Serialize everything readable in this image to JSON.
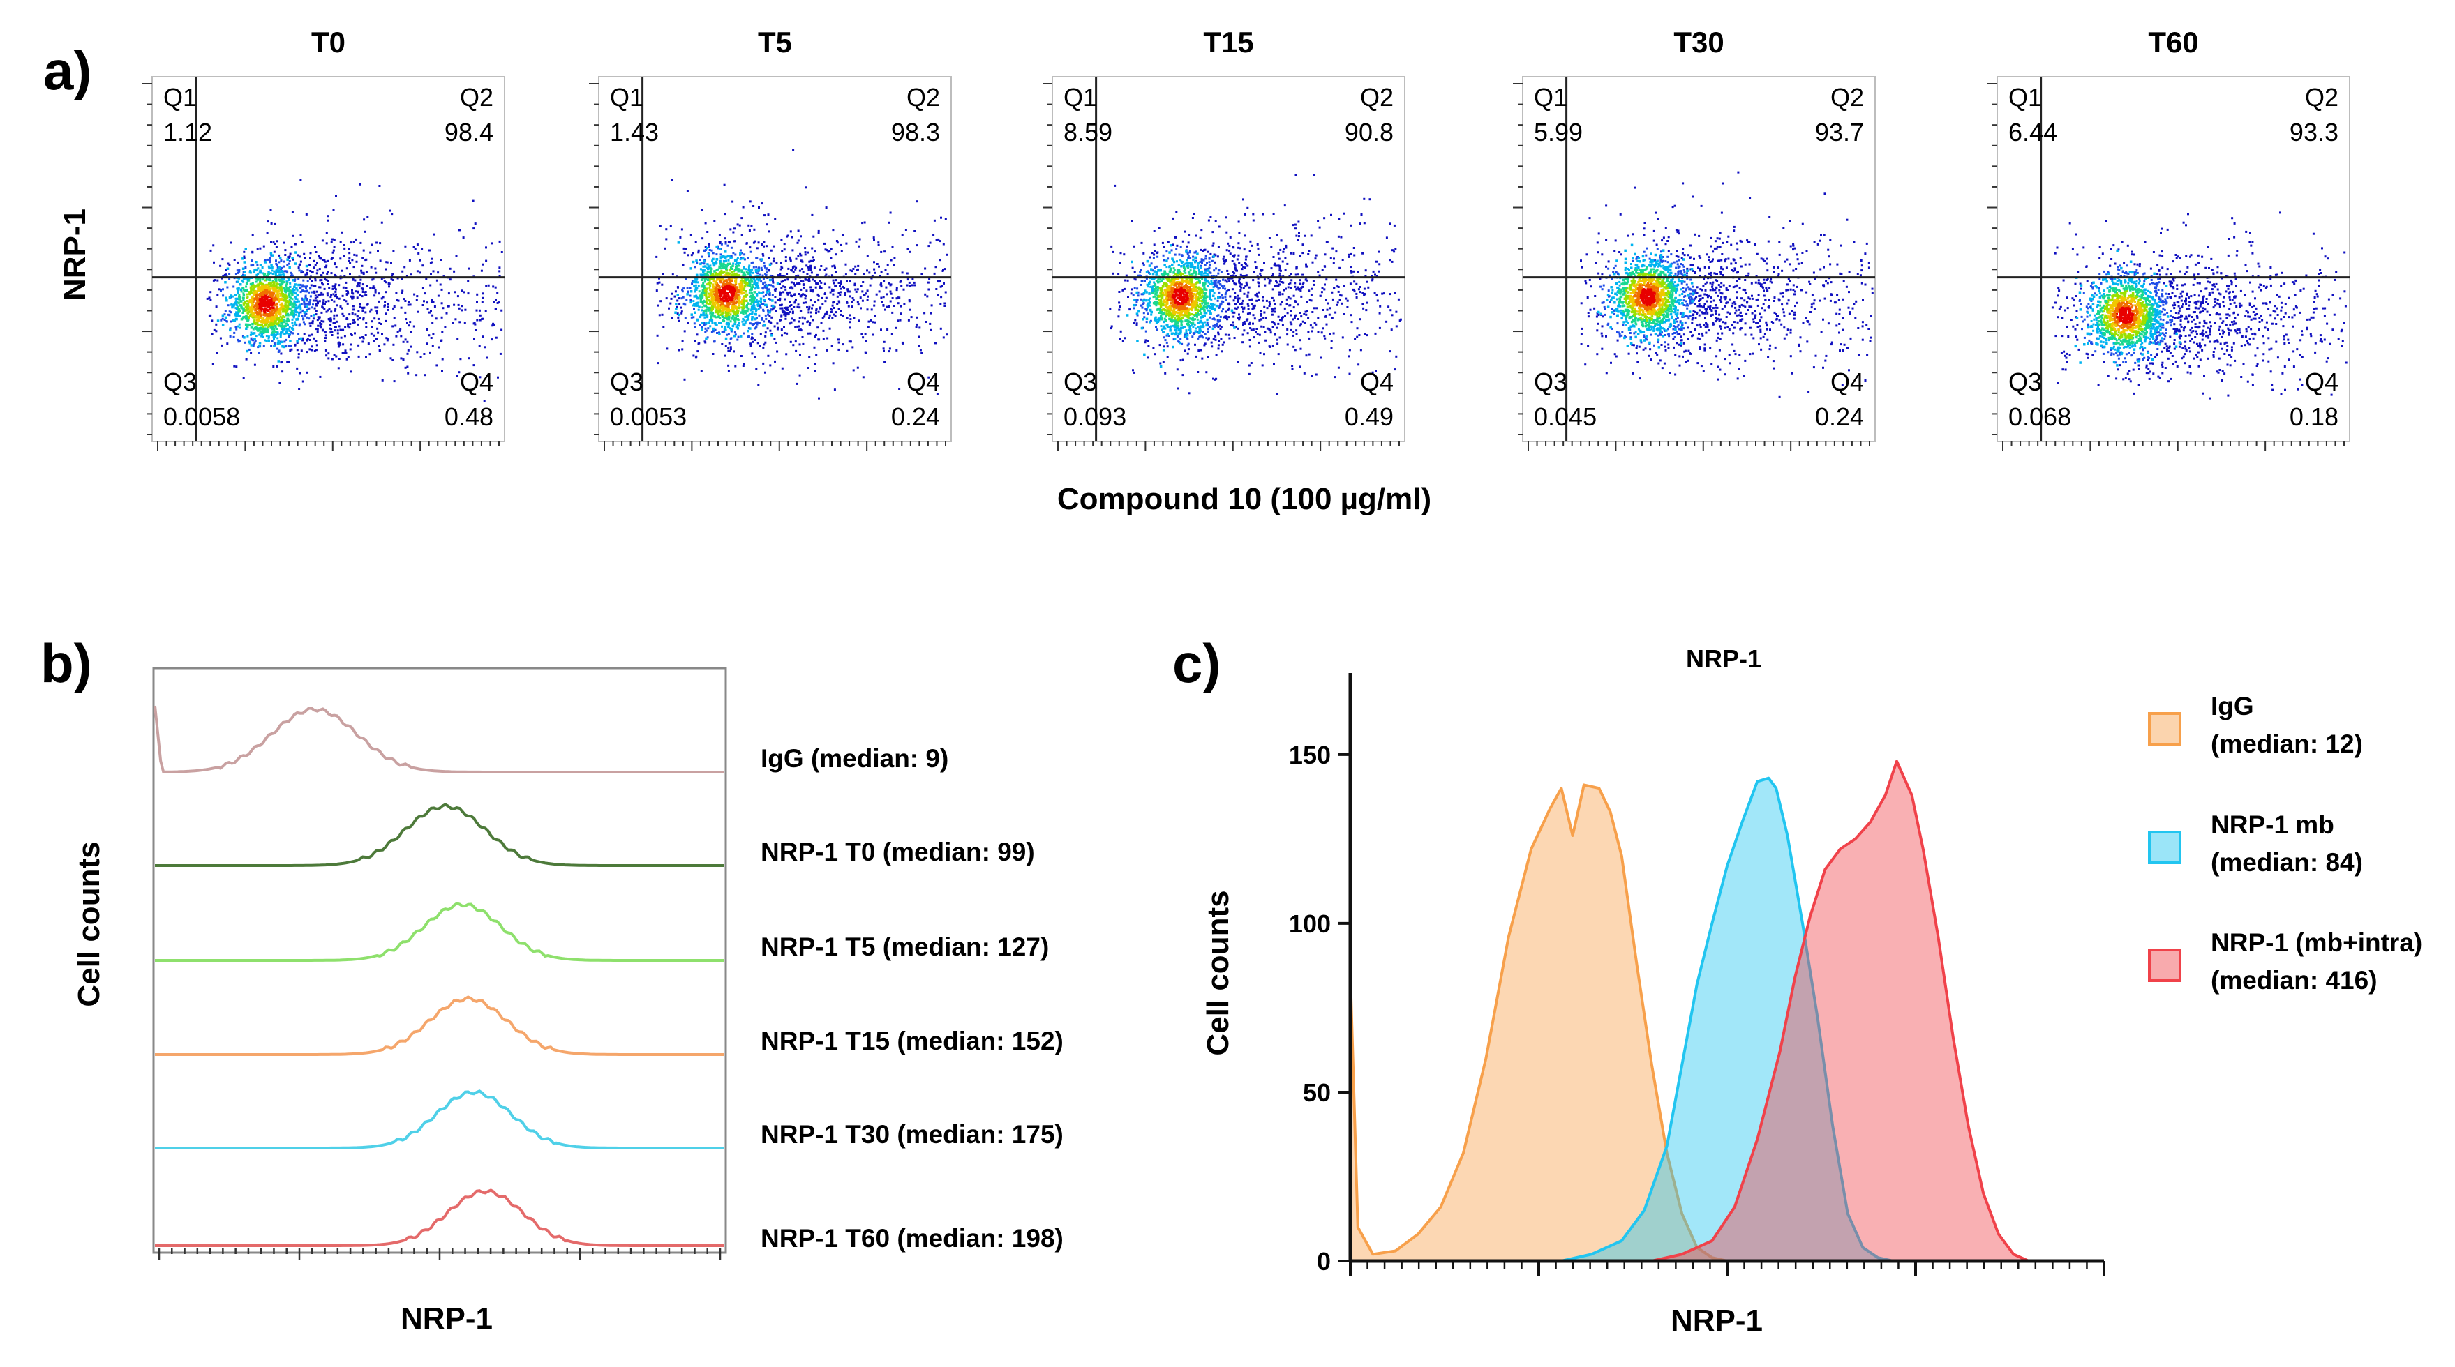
{
  "panel_a": {
    "label": "a)",
    "y_axis_label": "NRP-1",
    "x_axis_label": "Compound 10 (100 µg/ml)",
    "quadrant_names": [
      "Q1",
      "Q2",
      "Q3",
      "Q4"
    ]
  },
  "panel_b": {
    "label": "b)",
    "y_axis_label": "Cell counts",
    "x_axis_label": "NRP-1"
  },
  "panel_c": {
    "label": "c)",
    "title": "NRP-1",
    "y_axis_label": "Cell counts",
    "x_axis_label": "NRP-1"
  },
  "colors": {
    "igg_b": "#c9a1a1",
    "t0": "#4d7a3a",
    "t5": "#8ee06c",
    "t15": "#f5a66b",
    "t30": "#4fd0e8",
    "t60": "#e46a6a",
    "c_igg": "#f7a04b",
    "c_mb": "#22c5f0",
    "c_intra": "#f0424a"
  },
  "chart_data": [
    {
      "type": "scatter",
      "subtype": "flow-cytometry-quadrant-plots",
      "xlabel": "Compound 10 (100 µg/ml)",
      "ylabel": "NRP-1",
      "plots": [
        {
          "title": "T0",
          "q1": "1.12",
          "q2": "98.4",
          "q3": "0.0058",
          "q4": "0.48",
          "center": [
            0.32,
            0.62
          ]
        },
        {
          "title": "T5",
          "q1": "1.43",
          "q2": "98.3",
          "q3": "0.0053",
          "q4": "0.24",
          "center": [
            0.36,
            0.59
          ]
        },
        {
          "title": "T15",
          "q1": "8.59",
          "q2": "90.8",
          "q3": "0.093",
          "q4": "0.49",
          "center": [
            0.36,
            0.6
          ]
        },
        {
          "title": "T30",
          "q1": "5.99",
          "q2": "93.7",
          "q3": "0.045",
          "q4": "0.24",
          "center": [
            0.35,
            0.6
          ]
        },
        {
          "title": "T60",
          "q1": "6.44",
          "q2": "93.3",
          "q3": "0.068",
          "q4": "0.18",
          "center": [
            0.36,
            0.65
          ]
        }
      ]
    },
    {
      "type": "area",
      "subtype": "offset-histograms",
      "xlabel": "NRP-1",
      "ylabel": "Cell counts",
      "series": [
        {
          "name": "IgG (median: 9)",
          "color_key": "igg_b",
          "mu": 0.28,
          "sigma": 0.075
        },
        {
          "name": "NRP-1 T0 (median: 99)",
          "color_key": "t0",
          "mu": 0.51,
          "sigma": 0.07
        },
        {
          "name": "NRP-1 T5 (median: 127)",
          "color_key": "t5",
          "mu": 0.54,
          "sigma": 0.068
        },
        {
          "name": "NRP-1 T15 (median: 152)",
          "color_key": "t15",
          "mu": 0.55,
          "sigma": 0.068
        },
        {
          "name": "NRP-1 T30 (median: 175)",
          "color_key": "t30",
          "mu": 0.56,
          "sigma": 0.066
        },
        {
          "name": "NRP-1 T60 (median: 198)",
          "color_key": "t60",
          "mu": 0.58,
          "sigma": 0.066
        }
      ]
    },
    {
      "type": "area",
      "subtype": "overlaid-histograms",
      "title": "NRP-1",
      "xlabel": "NRP-1",
      "ylabel": "Cell counts",
      "ylim": [
        0,
        170
      ],
      "yticks": [
        0,
        50,
        100,
        150
      ],
      "series": [
        {
          "name": "IgG",
          "legend": [
            "IgG",
            "(median: 12)"
          ],
          "color_key": "c_igg",
          "points": [
            [
              0,
              85
            ],
            [
              0.01,
              10
            ],
            [
              0.03,
              2
            ],
            [
              0.06,
              3
            ],
            [
              0.09,
              8
            ],
            [
              0.12,
              16
            ],
            [
              0.15,
              32
            ],
            [
              0.18,
              60
            ],
            [
              0.21,
              96
            ],
            [
              0.24,
              122
            ],
            [
              0.265,
              134
            ],
            [
              0.28,
              140
            ],
            [
              0.295,
              126
            ],
            [
              0.31,
              141
            ],
            [
              0.33,
              140
            ],
            [
              0.345,
              133
            ],
            [
              0.36,
              120
            ],
            [
              0.38,
              88
            ],
            [
              0.4,
              58
            ],
            [
              0.42,
              32
            ],
            [
              0.44,
              14
            ],
            [
              0.46,
              4
            ],
            [
              0.48,
              1
            ],
            [
              0.5,
              0
            ]
          ]
        },
        {
          "name": "NRP-1 mb",
          "legend": [
            "NRP-1 mb",
            "(median: 84)"
          ],
          "color_key": "c_mb",
          "points": [
            [
              0.28,
              0
            ],
            [
              0.32,
              2
            ],
            [
              0.36,
              6
            ],
            [
              0.39,
              15
            ],
            [
              0.42,
              34
            ],
            [
              0.44,
              58
            ],
            [
              0.46,
              82
            ],
            [
              0.48,
              100
            ],
            [
              0.5,
              117
            ],
            [
              0.52,
              130
            ],
            [
              0.54,
              142
            ],
            [
              0.555,
              143
            ],
            [
              0.565,
              140
            ],
            [
              0.58,
              126
            ],
            [
              0.6,
              100
            ],
            [
              0.62,
              72
            ],
            [
              0.64,
              40
            ],
            [
              0.66,
              14
            ],
            [
              0.68,
              4
            ],
            [
              0.7,
              1
            ],
            [
              0.72,
              0
            ]
          ]
        },
        {
          "name": "NRP-1 (mb+intra)",
          "legend": [
            "NRP-1 (mb+intra)",
            "(median: 416)"
          ],
          "color_key": "c_intra",
          "points": [
            [
              0.4,
              0
            ],
            [
              0.44,
              2
            ],
            [
              0.48,
              6
            ],
            [
              0.51,
              16
            ],
            [
              0.54,
              36
            ],
            [
              0.57,
              62
            ],
            [
              0.59,
              84
            ],
            [
              0.61,
              102
            ],
            [
              0.63,
              116
            ],
            [
              0.65,
              122
            ],
            [
              0.67,
              125
            ],
            [
              0.69,
              130
            ],
            [
              0.71,
              138
            ],
            [
              0.725,
              148
            ],
            [
              0.745,
              138
            ],
            [
              0.76,
              122
            ],
            [
              0.78,
              96
            ],
            [
              0.8,
              66
            ],
            [
              0.82,
              40
            ],
            [
              0.84,
              20
            ],
            [
              0.86,
              8
            ],
            [
              0.88,
              2
            ],
            [
              0.9,
              0
            ]
          ]
        }
      ]
    }
  ]
}
